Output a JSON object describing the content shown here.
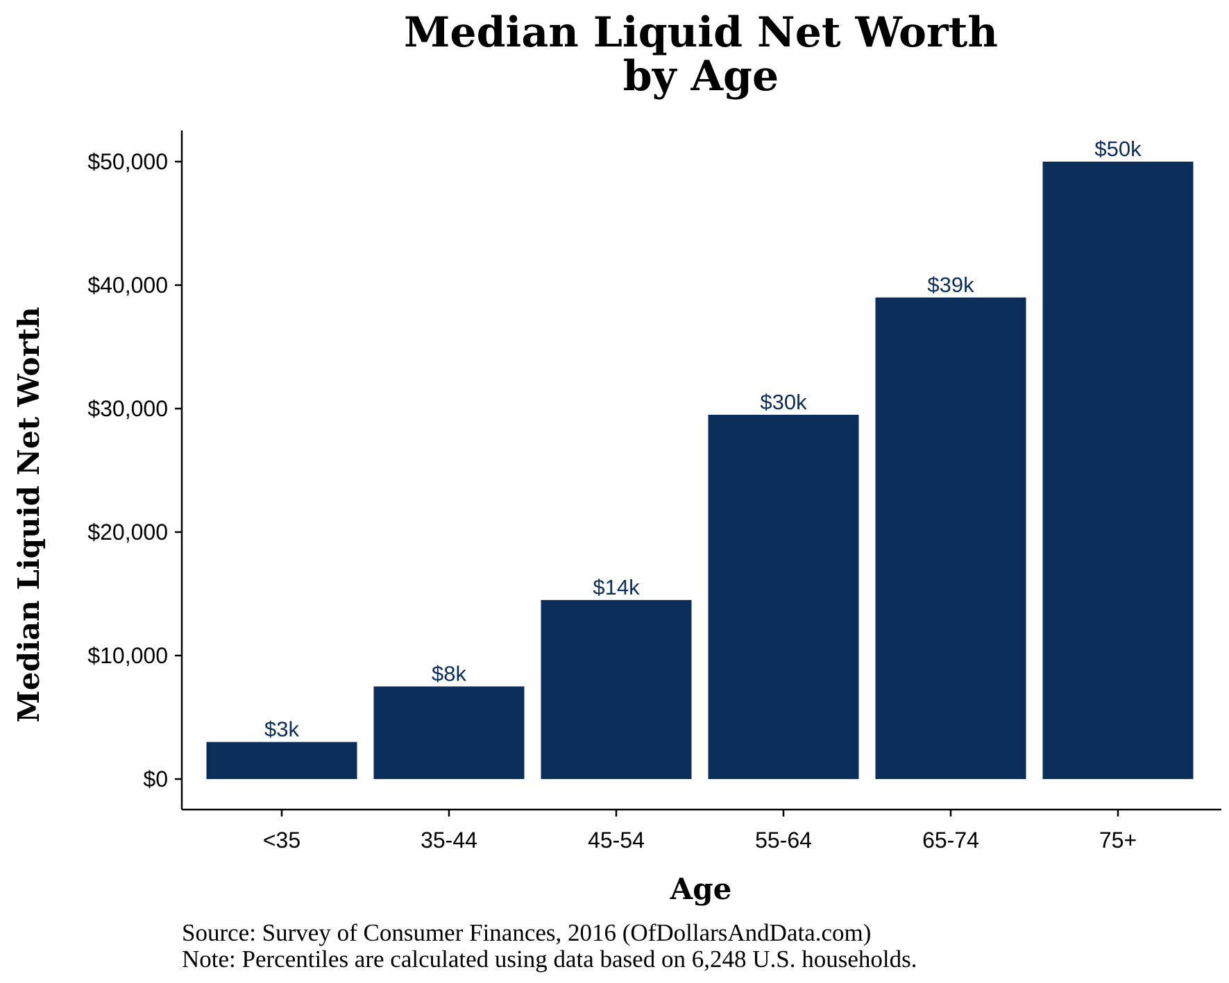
{
  "chart_data": {
    "type": "bar",
    "title_lines": [
      "Median Liquid Net Worth",
      "by Age"
    ],
    "xlabel": "Age",
    "ylabel": "Median Liquid Net Worth",
    "categories": [
      "<35",
      "35-44",
      "45-54",
      "55-64",
      "65-74",
      "75+"
    ],
    "values": [
      3000,
      7500,
      14500,
      29500,
      39000,
      50000
    ],
    "data_labels": [
      "$3k",
      "$8k",
      "$14k",
      "$30k",
      "$39k",
      "$50k"
    ],
    "yticks": [
      0,
      10000,
      20000,
      30000,
      40000,
      50000
    ],
    "ytick_labels": [
      "$0",
      "$10,000",
      "$20,000",
      "$30,000",
      "$40,000",
      "$50,000"
    ],
    "ylim": [
      0,
      52500
    ],
    "grid": false,
    "legend": "none",
    "bar_color": "#0b2d5a",
    "label_color": "#0b2d5a",
    "source_lines": [
      "Source:  Survey of Consumer Finances, 2016 (OfDollarsAndData.com)",
      "Note: Percentiles are calculated using data based on 6,248 U.S. households."
    ]
  }
}
